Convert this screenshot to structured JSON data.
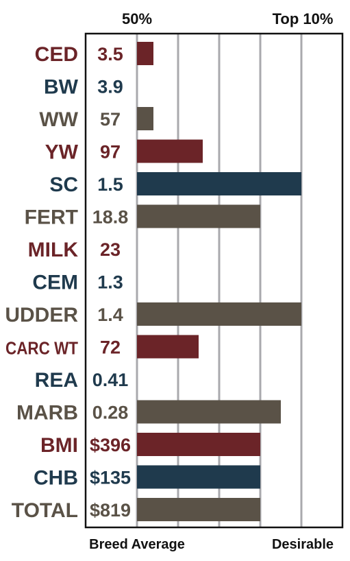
{
  "chart_data": {
    "type": "bar",
    "orientation": "horizontal",
    "top_labels": [
      "50%",
      "Top 10%"
    ],
    "bottom_labels": [
      "Breed Average",
      "Desirable"
    ],
    "xlim": [
      0,
      100
    ],
    "grid": true,
    "colors": {
      "maroon": "#6b2428",
      "navy": "#1f3a4d",
      "taupe": "#5a5247"
    },
    "rows": [
      {
        "category": "CED",
        "value_label": "3.5",
        "bar": 10,
        "color": "maroon"
      },
      {
        "category": "BW",
        "value_label": "3.9",
        "bar": 0,
        "color": "navy"
      },
      {
        "category": "WW",
        "value_label": "57",
        "bar": 10,
        "color": "taupe"
      },
      {
        "category": "YW",
        "value_label": "97",
        "bar": 40,
        "color": "maroon"
      },
      {
        "category": "SC",
        "value_label": "1.5",
        "bar": 100,
        "color": "navy"
      },
      {
        "category": "FERT",
        "value_label": "18.8",
        "bar": 75,
        "color": "taupe"
      },
      {
        "category": "MILK",
        "value_label": "23",
        "bar": 0,
        "color": "maroon"
      },
      {
        "category": "CEM",
        "value_label": "1.3",
        "bar": 0,
        "color": "navy"
      },
      {
        "category": "UDDER",
        "value_label": "1.4",
        "bar": 100,
        "color": "taupe"
      },
      {
        "category": "CARC WT",
        "value_label": "72",
        "bar": 37.5,
        "color": "maroon"
      },
      {
        "category": "REA",
        "value_label": "0.41",
        "bar": 0,
        "color": "navy"
      },
      {
        "category": "MARB",
        "value_label": "0.28",
        "bar": 87.5,
        "color": "taupe"
      },
      {
        "category": "BMI",
        "value_label": "$396",
        "bar": 75,
        "color": "maroon"
      },
      {
        "category": "CHB",
        "value_label": "$135",
        "bar": 75,
        "color": "navy"
      },
      {
        "category": "TOTAL",
        "value_label": "$819",
        "bar": 75,
        "color": "taupe"
      }
    ]
  }
}
